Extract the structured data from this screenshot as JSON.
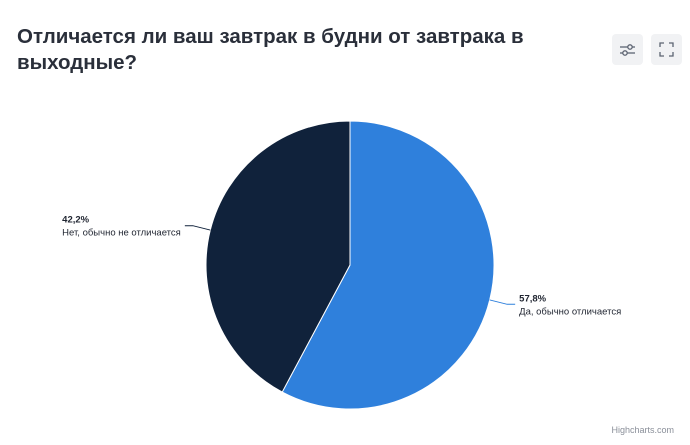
{
  "title": "Отличается ли ваш завтрак в будни от завтрака в выходные?",
  "toolbar": {
    "settings_icon": "sliders-icon",
    "fullscreen_icon": "fullscreen-icon"
  },
  "credits": "Highcharts.com",
  "chart_data": {
    "type": "pie",
    "series": [
      {
        "values": [
          {
            "label": "Да, обычно отличается",
            "value": 57.8,
            "display": "57,8%",
            "color": "#2f80dc"
          },
          {
            "label": "Нет, обычно не отличается",
            "value": 42.2,
            "display": "42,2%",
            "color": "#10223b"
          }
        ]
      }
    ],
    "start_angle_deg": 0,
    "direction": "clockwise",
    "legend": "none"
  }
}
